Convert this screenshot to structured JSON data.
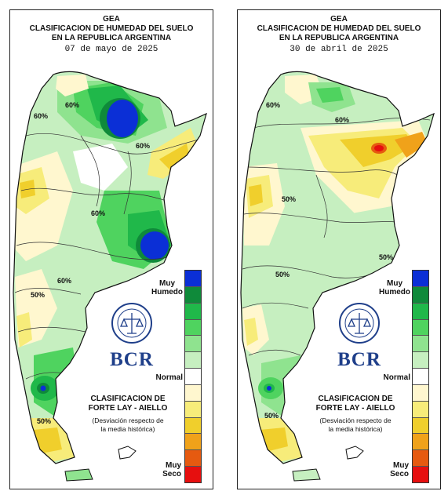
{
  "maps": [
    {
      "org": "GEA",
      "title_line1": "CLASIFICACION DE HUMEDAD DEL SUELO",
      "title_line2": "EN LA REPUBLICA ARGENTINA",
      "date": "07 de mayo de 2025",
      "contour_labels": [
        "60%",
        "60%",
        "60%",
        "60%",
        "60%",
        "50%",
        "50%"
      ],
      "legend_top_1": "Muy",
      "legend_top_2": "Humedo",
      "legend_mid": "Normal",
      "legend_bot_1": "Muy",
      "legend_bot_2": "Seco",
      "classification_1": "CLASIFICACION DE",
      "classification_2": "FORTE LAY - AIELLO",
      "note_1": "(Desviación respecto de",
      "note_2": "la media histórica)",
      "logo_text": "BCR"
    },
    {
      "org": "GEA",
      "title_line1": "CLASIFICACION DE HUMEDAD DEL SUELO",
      "title_line2": "EN LA REPUBLICA ARGENTINA",
      "date": "30 de abril de 2025",
      "contour_labels": [
        "60%",
        "60%",
        "50%",
        "50%",
        "50%",
        "50%"
      ],
      "legend_top_1": "Muy",
      "legend_top_2": "Humedo",
      "legend_mid": "Normal",
      "legend_bot_1": "Muy",
      "legend_bot_2": "Seco",
      "classification_1": "CLASIFICACION DE",
      "classification_2": "FORTE LAY - AIELLO",
      "note_1": "(Desviación respecto de",
      "note_2": "la media histórica)",
      "logo_text": "BCR"
    }
  ],
  "legend_colors": [
    "#0b2fd6",
    "#0f8a3a",
    "#20b84a",
    "#4fd35f",
    "#8fe38f",
    "#c6efc0",
    "#ffffff",
    "#fff7cf",
    "#f7ec7a",
    "#f0cf2c",
    "#f0a21a",
    "#e65a10",
    "#e60f0f"
  ]
}
